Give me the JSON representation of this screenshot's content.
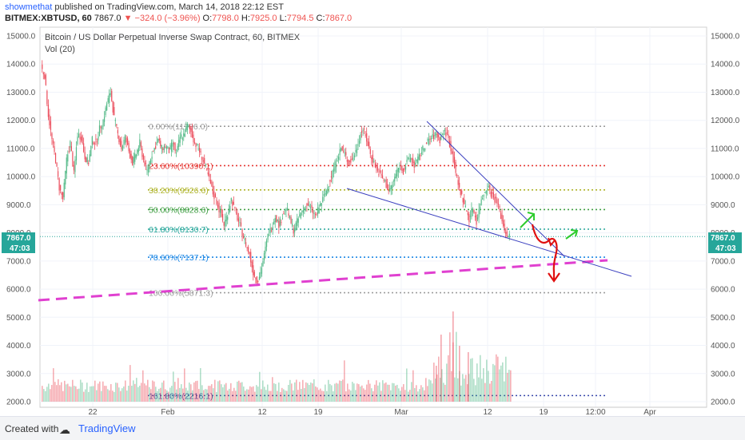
{
  "header": {
    "author": "showmethat",
    "published": "published on TradingView.com, March 14, 2018 22:12 EST",
    "symbol": "BITMEX:XBTUSD, 60",
    "last": "7867.0",
    "change": "−324.0 (−3.96%)",
    "o_label": "O:",
    "o": "7798.0",
    "h_label": "H:",
    "h": "7925.0",
    "l_label": "L:",
    "l": "7794.5",
    "c_label": "C:",
    "c": "7867.0"
  },
  "legend": {
    "title": "Bitcoin / US Dollar Perpetual Inverse Swap Contract, 60, BITMEX",
    "volume": "Vol (20)"
  },
  "price_tags": {
    "left_price": "7867.0",
    "left_time": "47:03",
    "right_price": "7867.0",
    "right_time": "47:03"
  },
  "footer": {
    "created": "Created with",
    "brand": "TradingView"
  },
  "colors": {
    "up": "#53b987",
    "down": "#eb4d5c",
    "trend": "#3a3fbf",
    "support": "#e040d0",
    "arrow_up": "#2ecc2e",
    "arrow_down": "#e01010",
    "price_tag": "#26a69a"
  },
  "chart_data": {
    "type": "candlestick",
    "title": "Bitcoin / US Dollar Perpetual Inverse Swap Contract, 60, BITMEX",
    "y_axis_ticks": [
      "15000.0",
      "14000.0",
      "13000.0",
      "12000.0",
      "11000.0",
      "10000.0",
      "9000.0",
      "8000.0",
      "7000.0",
      "6000.0",
      "5000.0",
      "4000.0",
      "3000.0",
      "2000.0"
    ],
    "x_axis_ticks": [
      "22",
      "Feb",
      "12",
      "19",
      "Mar",
      "12",
      "19",
      "12:00",
      "Apr"
    ],
    "ylim": [
      2000,
      15000
    ],
    "fib_levels": [
      {
        "label": "0.00%(11786.0)",
        "price": 11786.0,
        "color": "#9e9e9e"
      },
      {
        "label": "23.60%(10390.1)",
        "price": 10390.1,
        "color": "#e53935"
      },
      {
        "label": "38.20%(9526.6)",
        "price": 9526.6,
        "color": "#afb42b"
      },
      {
        "label": "50.00%(8828.6)",
        "price": 8828.6,
        "color": "#43a047"
      },
      {
        "label": "61.80%(8130.7)",
        "price": 8130.7,
        "color": "#26a69a"
      },
      {
        "label": "78.60%(7137.1)",
        "price": 7137.1,
        "color": "#1e88e5"
      },
      {
        "label": "100.00%(5871.3)",
        "price": 5871.3,
        "color": "#9e9e9e"
      },
      {
        "label": "161.80%(2216.1)",
        "price": 2216.1,
        "color": "#3949ab"
      }
    ],
    "price_path": [
      [
        0,
        13900
      ],
      [
        2,
        13600
      ],
      [
        4,
        12200
      ],
      [
        6,
        11300
      ],
      [
        8,
        10600
      ],
      [
        10,
        9600
      ],
      [
        12,
        9200
      ],
      [
        14,
        10600
      ],
      [
        16,
        11200
      ],
      [
        18,
        10100
      ],
      [
        20,
        11500
      ],
      [
        22,
        11400
      ],
      [
        24,
        10700
      ],
      [
        26,
        10500
      ],
      [
        28,
        11300
      ],
      [
        30,
        11200
      ],
      [
        32,
        11700
      ],
      [
        34,
        12000
      ],
      [
        36,
        12600
      ],
      [
        38,
        13000
      ],
      [
        40,
        12100
      ],
      [
        42,
        11500
      ],
      [
        44,
        11000
      ],
      [
        46,
        11400
      ],
      [
        48,
        10900
      ],
      [
        50,
        10500
      ],
      [
        52,
        10800
      ],
      [
        54,
        11200
      ],
      [
        56,
        10600
      ],
      [
        58,
        10200
      ],
      [
        60,
        10700
      ],
      [
        62,
        11000
      ],
      [
        64,
        11300
      ],
      [
        66,
        11000
      ],
      [
        68,
        11100
      ],
      [
        70,
        10900
      ],
      [
        72,
        11200
      ],
      [
        74,
        10800
      ],
      [
        76,
        11400
      ],
      [
        78,
        11500
      ],
      [
        80,
        11800
      ],
      [
        82,
        11600
      ],
      [
        84,
        11200
      ],
      [
        86,
        11000
      ],
      [
        88,
        10700
      ],
      [
        90,
        10300
      ],
      [
        92,
        9900
      ],
      [
        94,
        9400
      ],
      [
        96,
        9100
      ],
      [
        98,
        8700
      ],
      [
        100,
        8300
      ],
      [
        102,
        8700
      ],
      [
        104,
        9200
      ],
      [
        106,
        8800
      ],
      [
        108,
        8400
      ],
      [
        110,
        8000
      ],
      [
        112,
        7600
      ],
      [
        114,
        7200
      ],
      [
        116,
        6600
      ],
      [
        118,
        6300
      ],
      [
        120,
        6600
      ],
      [
        122,
        7200
      ],
      [
        124,
        7900
      ],
      [
        126,
        8200
      ],
      [
        128,
        8600
      ],
      [
        130,
        8300
      ],
      [
        132,
        8600
      ],
      [
        134,
        8900
      ],
      [
        136,
        8500
      ],
      [
        138,
        8100
      ],
      [
        140,
        8400
      ],
      [
        142,
        8700
      ],
      [
        144,
        8900
      ],
      [
        146,
        9000
      ],
      [
        148,
        8800
      ],
      [
        150,
        8600
      ],
      [
        152,
        8900
      ],
      [
        154,
        9200
      ],
      [
        156,
        9500
      ],
      [
        158,
        9900
      ],
      [
        160,
        10300
      ],
      [
        162,
        10700
      ],
      [
        164,
        11000
      ],
      [
        166,
        10800
      ],
      [
        168,
        10500
      ],
      [
        170,
        10600
      ],
      [
        172,
        10900
      ],
      [
        174,
        11400
      ],
      [
        176,
        11700
      ],
      [
        178,
        11300
      ],
      [
        180,
        10800
      ],
      [
        182,
        10500
      ],
      [
        184,
        10200
      ],
      [
        186,
        10000
      ],
      [
        188,
        9800
      ],
      [
        190,
        9500
      ],
      [
        192,
        9700
      ],
      [
        194,
        10100
      ],
      [
        196,
        10400
      ],
      [
        198,
        10200
      ],
      [
        200,
        10500
      ],
      [
        202,
        10700
      ],
      [
        204,
        10400
      ],
      [
        206,
        10600
      ],
      [
        208,
        10900
      ],
      [
        210,
        11100
      ],
      [
        212,
        11300
      ],
      [
        214,
        11400
      ],
      [
        216,
        11500
      ],
      [
        218,
        11300
      ],
      [
        220,
        11600
      ],
      [
        222,
        11500
      ],
      [
        224,
        11000
      ],
      [
        226,
        10400
      ],
      [
        228,
        9700
      ],
      [
        230,
        9300
      ],
      [
        232,
        8900
      ],
      [
        234,
        8500
      ],
      [
        236,
        8900
      ],
      [
        238,
        8400
      ],
      [
        240,
        9000
      ],
      [
        242,
        9400
      ],
      [
        244,
        9700
      ],
      [
        246,
        9400
      ],
      [
        248,
        9200
      ],
      [
        250,
        9000
      ],
      [
        252,
        8400
      ],
      [
        254,
        8000
      ],
      [
        256,
        7867
      ]
    ],
    "volume_label": "Vol (20)"
  }
}
